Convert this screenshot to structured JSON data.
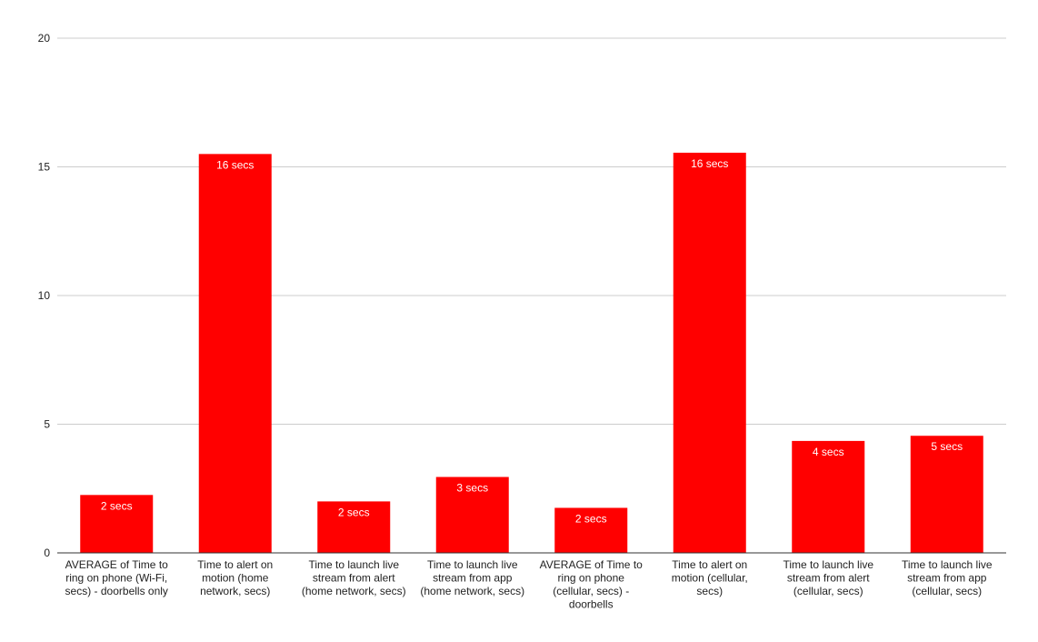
{
  "chart_data": {
    "type": "bar",
    "categories": [
      [
        "AVERAGE of Time to",
        "ring on phone (Wi-Fi,",
        "secs) - doorbells only"
      ],
      [
        "Time to alert on",
        "motion (home",
        "network, secs)"
      ],
      [
        "Time to launch live",
        "stream from alert",
        "(home network, secs)"
      ],
      [
        "Time to launch live",
        "stream from app",
        "(home network, secs)"
      ],
      [
        "AVERAGE of Time to",
        "ring on phone",
        "(cellular, secs) -",
        "doorbells"
      ],
      [
        "Time to alert on",
        "motion (cellular,",
        "secs)"
      ],
      [
        "Time to launch live",
        "stream from alert",
        "(cellular, secs)"
      ],
      [
        "Time to launch live",
        "stream from app",
        "(cellular, secs)"
      ]
    ],
    "values": [
      2.25,
      15.5,
      2.0,
      2.95,
      1.75,
      15.55,
      4.35,
      4.55
    ],
    "data_labels": [
      "2 secs",
      "16 secs",
      "2 secs",
      "3 secs",
      "2 secs",
      "16 secs",
      "4 secs",
      "5 secs"
    ],
    "ylim": [
      0,
      20
    ],
    "yticks": [
      "0",
      "5",
      "10",
      "15",
      "20"
    ],
    "ytick_values": [
      0,
      5,
      10,
      15,
      20
    ],
    "grid": true,
    "bar_color": "#ff0000",
    "title": "",
    "xlabel": "",
    "ylabel": ""
  }
}
